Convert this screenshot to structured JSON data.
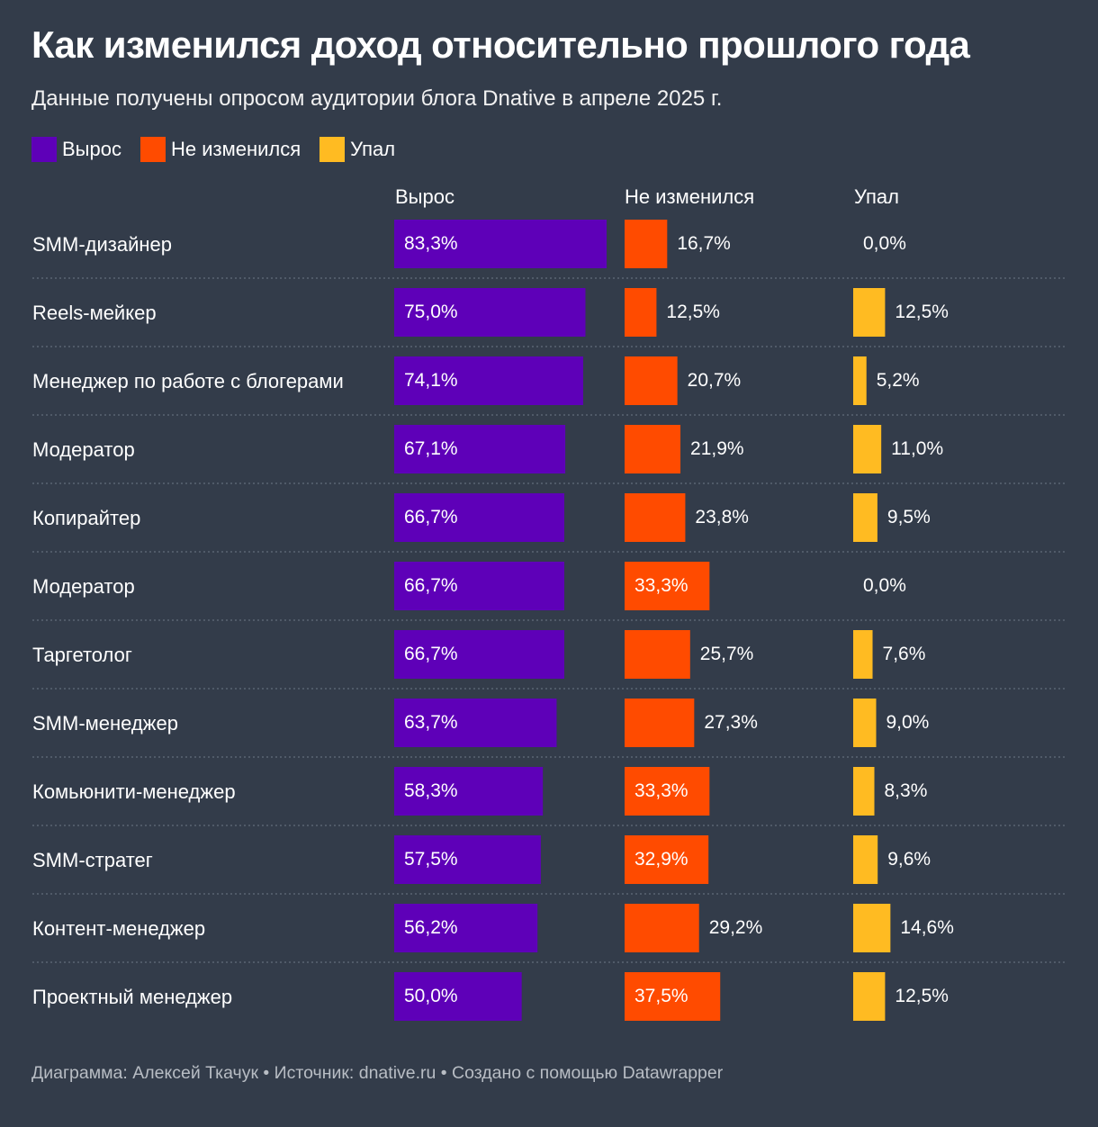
{
  "title": "Как изменился доход относительно прошлого года",
  "subtitle": "Данные получены опросом аудитории блога Dnative в апреле 2025 г.",
  "legend": [
    {
      "label": "Вырос",
      "color": "#5e00b8"
    },
    {
      "label": "Не изменился",
      "color": "#ff4b00"
    },
    {
      "label": "Упал",
      "color": "#ffbb22"
    }
  ],
  "columns": [
    "Вырос",
    "Не изменился",
    "Упал"
  ],
  "footer": {
    "text": "Диаграмма: Алексей Ткачук • Источник: dnative.ru • Создано с помощью Datawrapper"
  },
  "chart_data": {
    "type": "bar",
    "categories": [
      "SMM-дизайнер",
      "Reels-мейкер",
      "Менеджер по работе с блогерами",
      "Модератор",
      "Копирайтер",
      "Модератор",
      "Таргетолог",
      "SMM-менеджер",
      "Комьюнити-менеджер",
      "SMM-стратег",
      "Контент-менеджер",
      "Проектный менеджер"
    ],
    "series": [
      {
        "name": "Вырос",
        "color": "#5e00b8",
        "values": [
          83.3,
          75.0,
          74.1,
          67.1,
          66.7,
          66.7,
          66.7,
          63.7,
          58.3,
          57.5,
          56.2,
          50.0
        ],
        "labels": [
          "83,3%",
          "75,0%",
          "74,1%",
          "67,1%",
          "66,7%",
          "66,7%",
          "66,7%",
          "63,7%",
          "58,3%",
          "57,5%",
          "56,2%",
          "50,0%"
        ]
      },
      {
        "name": "Не изменился",
        "color": "#ff4b00",
        "values": [
          16.7,
          12.5,
          20.7,
          21.9,
          23.8,
          33.3,
          25.7,
          27.3,
          33.3,
          32.9,
          29.2,
          37.5
        ],
        "labels": [
          "16,7%",
          "12,5%",
          "20,7%",
          "21,9%",
          "23,8%",
          "33,3%",
          "25,7%",
          "27,3%",
          "33,3%",
          "32,9%",
          "29,2%",
          "37,5%"
        ]
      },
      {
        "name": "Упал",
        "color": "#ffbb22",
        "values": [
          0.0,
          12.5,
          5.2,
          11.0,
          9.5,
          0.0,
          7.6,
          9.0,
          8.3,
          9.6,
          14.6,
          12.5
        ],
        "labels": [
          "0,0%",
          "12,5%",
          "5,2%",
          "11,0%",
          "9,5%",
          "0,0%",
          "7,6%",
          "9,0%",
          "8,3%",
          "9,6%",
          "14,6%",
          "12,5%"
        ]
      }
    ],
    "xlim": [
      0,
      100
    ]
  }
}
